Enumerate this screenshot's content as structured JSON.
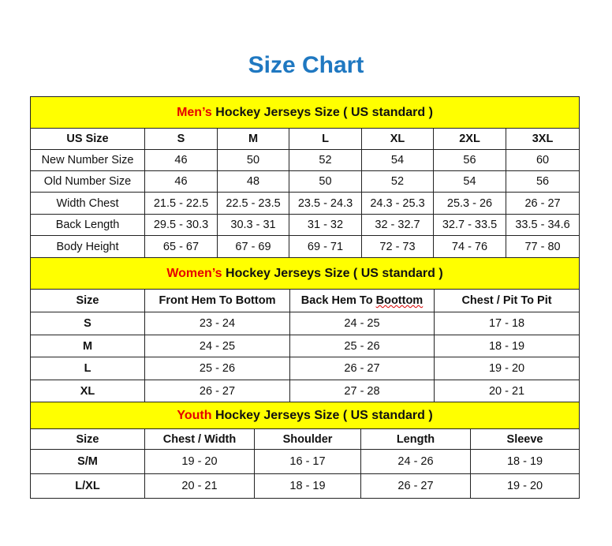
{
  "title": "Size Chart",
  "colors": {
    "title": "#1f78c1",
    "band": "#ffff00",
    "highlight": "#e60000"
  },
  "sections": [
    {
      "id": "men",
      "band_highlight": "Men’s",
      "band_rest": " Hockey Jerseys Size ( US standard )",
      "headers": [
        "US Size",
        "S",
        "M",
        "L",
        "XL",
        "2XL",
        "3XL"
      ],
      "rows": [
        [
          "New Number Size",
          "46",
          "50",
          "52",
          "54",
          "56",
          "60"
        ],
        [
          "Old Number Size",
          "46",
          "48",
          "50",
          "52",
          "54",
          "56"
        ],
        [
          "Width Chest",
          "21.5 - 22.5",
          "22.5 - 23.5",
          "23.5 - 24.3",
          "24.3 - 25.3",
          "25.3 - 26",
          "26 - 27"
        ],
        [
          "Back Length",
          "29.5 - 30.3",
          "30.3 - 31",
          "31 - 32",
          "32 - 32.7",
          "32.7 - 33.5",
          "33.5 - 34.6"
        ],
        [
          "Body Height",
          "65 - 67",
          "67 - 69",
          "69 - 71",
          "72 - 73",
          "74 - 76",
          "77 - 80"
        ]
      ]
    },
    {
      "id": "women",
      "band_highlight": "Women’s",
      "band_rest": " Hockey Jerseys Size ( US standard )",
      "headers": [
        "Size",
        "Front Hem To Bottom",
        "Back Hem To Boottom",
        "Chest / Pit To Pit"
      ],
      "rows": [
        [
          "S",
          "23 - 24",
          "24 - 25",
          "17 - 18"
        ],
        [
          "M",
          "24 - 25",
          "25 - 26",
          "18 - 19"
        ],
        [
          "L",
          "25 - 26",
          "26 - 27",
          "19 - 20"
        ],
        [
          "XL",
          "26 - 27",
          "27 - 28",
          "20 - 21"
        ]
      ]
    },
    {
      "id": "youth",
      "band_highlight": "Youth",
      "band_rest": " Hockey Jerseys Size ( US standard )",
      "headers": [
        "Size",
        "Chest / Width",
        "Shoulder",
        "Length",
        "Sleeve"
      ],
      "rows": [
        [
          "S/M",
          "19 - 20",
          "16 - 17",
          "24 - 26",
          "18 - 19"
        ],
        [
          "L/XL",
          "20 - 21",
          "18 - 19",
          "26 - 27",
          "19 - 20"
        ]
      ]
    }
  ]
}
